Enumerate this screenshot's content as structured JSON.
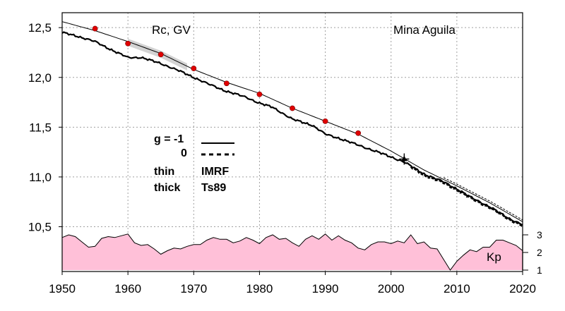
{
  "chart_data": {
    "type": "line",
    "title": "",
    "xlabel": "",
    "ylabel": "",
    "annotations": {
      "quantity": "Rc, GV",
      "station": "Mina Aguila",
      "legend": {
        "g_minus1": "g  = -1",
        "g_zero": "0",
        "thin": "thin",
        "imrf": "IMRF",
        "thick": "thick",
        "ts89": "Ts89"
      },
      "kp_label": "Kp"
    },
    "xlim": [
      1950,
      2020
    ],
    "ylim": [
      10.05,
      12.65
    ],
    "x_ticks": [
      "1950",
      "1960",
      "1970",
      "1980",
      "1990",
      "2000",
      "2010",
      "2020"
    ],
    "y_ticks": [
      "10,5",
      "11,0",
      "11,5",
      "12,0",
      "12,5"
    ],
    "kp_axis": {
      "range": [
        1,
        3
      ],
      "ticks": [
        "1",
        "2",
        "3"
      ]
    },
    "grid": true,
    "colors": {
      "kp_fill": "#ffc0d8",
      "measured_points": "#e00000",
      "lines": "#000000",
      "band": "#c8c8c8"
    },
    "series": [
      {
        "style": "thin",
        "x": [
          1950,
          1955,
          1960,
          1965,
          1970,
          1975,
          1980,
          1985,
          1990,
          1995,
          2000,
          2005,
          2010,
          2015,
          2020
        ],
        "values": [
          12.56,
          12.47,
          12.36,
          12.24,
          12.08,
          11.95,
          11.84,
          11.69,
          11.56,
          11.43,
          11.26,
          11.07,
          10.91,
          10.74,
          10.55
        ]
      },
      {
        "style": "thick",
        "x": [
          1950,
          1952,
          1955,
          1958,
          1960,
          1962,
          1965,
          1968,
          1970,
          1972,
          1975,
          1978,
          1980,
          1982,
          1985,
          1988,
          1990,
          1992,
          1995,
          1998,
          2000,
          2002,
          2005,
          2008,
          2010,
          2012,
          2015,
          2018,
          2020
        ],
        "values": [
          12.45,
          12.42,
          12.36,
          12.26,
          12.2,
          12.2,
          12.14,
          12.06,
          12.0,
          11.94,
          11.86,
          11.8,
          11.74,
          11.7,
          11.58,
          11.52,
          11.43,
          11.39,
          11.32,
          11.25,
          11.2,
          11.15,
          11.03,
          10.95,
          10.88,
          10.8,
          10.7,
          10.58,
          10.52
        ]
      },
      {
        "style": "markers",
        "x": [
          1955,
          1960,
          1965,
          1970,
          1975,
          1980,
          1985,
          1990,
          1995
        ],
        "values": [
          12.49,
          12.34,
          12.23,
          12.09,
          11.94,
          11.83,
          11.69,
          11.56,
          11.44
        ]
      },
      {
        "style": "kp",
        "x": [
          1950,
          1951,
          1952,
          1953,
          1954,
          1955,
          1956,
          1957,
          1958,
          1959,
          1960,
          1961,
          1962,
          1963,
          1964,
          1965,
          1966,
          1967,
          1968,
          1969,
          1970,
          1971,
          1972,
          1973,
          1974,
          1975,
          1976,
          1977,
          1978,
          1979,
          1980,
          1981,
          1982,
          1983,
          1984,
          1985,
          1986,
          1987,
          1988,
          1989,
          1990,
          1991,
          1992,
          1993,
          1994,
          1995,
          1996,
          1997,
          1998,
          1999,
          2000,
          2001,
          2002,
          2003,
          2004,
          2005,
          2006,
          2007,
          2008,
          2009,
          2010,
          2011,
          2012,
          2013,
          2014,
          2015,
          2016,
          2017,
          2018,
          2019,
          2020
        ],
        "values": [
          2.85,
          3.0,
          2.9,
          2.6,
          2.3,
          2.35,
          2.8,
          2.9,
          2.85,
          2.95,
          3.05,
          2.55,
          2.4,
          2.45,
          2.2,
          1.9,
          2.1,
          2.25,
          2.2,
          2.35,
          2.45,
          2.45,
          2.7,
          2.85,
          2.75,
          2.75,
          2.55,
          2.65,
          2.85,
          2.7,
          2.5,
          2.85,
          3.0,
          2.75,
          2.8,
          2.55,
          2.35,
          2.75,
          2.95,
          2.75,
          3.05,
          2.7,
          2.95,
          2.7,
          2.55,
          2.25,
          2.15,
          2.45,
          2.6,
          2.6,
          2.5,
          2.65,
          2.55,
          3.0,
          2.5,
          2.6,
          2.25,
          2.2,
          1.6,
          1.0,
          1.5,
          1.85,
          2.15,
          2.05,
          2.3,
          2.3,
          2.7,
          2.7,
          2.55,
          2.4,
          2.1
        ]
      }
    ],
    "crossing_marker": {
      "x": 2002,
      "y": 11.18
    }
  }
}
